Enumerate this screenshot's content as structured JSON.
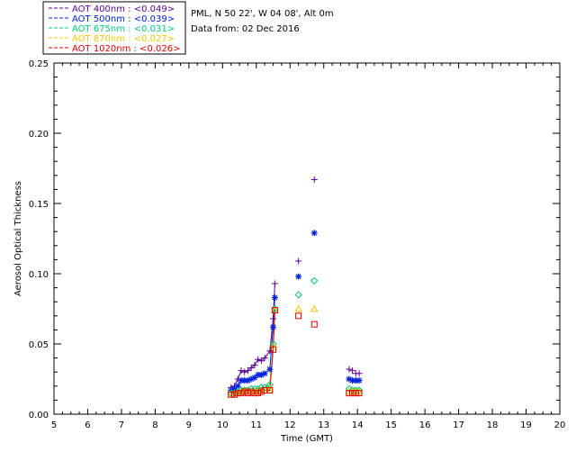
{
  "header": {
    "site_line": "PML, N 50 22', W 04 08', Alt 0m",
    "date_line": "Data from: 02 Dec 2016"
  },
  "chart_data": {
    "type": "scatter",
    "xlabel": "Time (GMT)",
    "ylabel": "Aerosol Optical Thickness",
    "xlim": [
      5,
      20
    ],
    "ylim": [
      0,
      0.25
    ],
    "x_ticks": [
      "5",
      "6",
      "7",
      "8",
      "9",
      "10",
      "11",
      "12",
      "13",
      "14",
      "15",
      "16",
      "17",
      "18",
      "19",
      "20"
    ],
    "y_ticks": [
      "0.00",
      "0.05",
      "0.10",
      "0.15",
      "0.20",
      "0.25"
    ],
    "grid": false,
    "legend_position": "top-left, outside plot",
    "series": [
      {
        "name": "AOT  400nm : <0.049>",
        "color": "#5a0096",
        "marker": "plus",
        "line_segments": [
          [
            [
              10.25,
              0.019
            ],
            [
              10.35,
              0.02
            ],
            [
              10.45,
              0.025
            ],
            [
              10.55,
              0.031
            ],
            [
              10.65,
              0.03
            ],
            [
              10.75,
              0.031
            ],
            [
              10.85,
              0.033
            ],
            [
              10.95,
              0.035
            ],
            [
              11.05,
              0.039
            ],
            [
              11.15,
              0.038
            ],
            [
              11.25,
              0.04
            ],
            [
              11.4,
              0.045
            ],
            [
              11.5,
              0.068
            ],
            [
              11.55,
              0.093
            ]
          ]
        ],
        "points": [
          [
            10.25,
            0.019
          ],
          [
            10.35,
            0.02
          ],
          [
            10.45,
            0.025
          ],
          [
            10.55,
            0.031
          ],
          [
            10.65,
            0.03
          ],
          [
            10.75,
            0.031
          ],
          [
            10.85,
            0.033
          ],
          [
            10.95,
            0.035
          ],
          [
            11.05,
            0.039
          ],
          [
            11.15,
            0.038
          ],
          [
            11.25,
            0.04
          ],
          [
            11.4,
            0.045
          ],
          [
            11.5,
            0.068
          ],
          [
            11.55,
            0.093
          ],
          [
            12.25,
            0.109
          ],
          [
            12.72,
            0.167
          ],
          [
            13.75,
            0.032
          ],
          [
            13.85,
            0.031
          ],
          [
            13.95,
            0.029
          ],
          [
            14.05,
            0.029
          ]
        ]
      },
      {
        "name": "AOT  500nm : <0.039>",
        "color": "#0020e0",
        "marker": "asterisk",
        "line_segments": [
          [
            [
              10.25,
              0.017
            ],
            [
              10.35,
              0.018
            ],
            [
              10.45,
              0.02
            ],
            [
              10.55,
              0.024
            ],
            [
              10.65,
              0.024
            ],
            [
              10.75,
              0.024
            ],
            [
              10.85,
              0.025
            ],
            [
              10.95,
              0.026
            ],
            [
              11.05,
              0.028
            ],
            [
              11.15,
              0.028
            ],
            [
              11.25,
              0.029
            ],
            [
              11.4,
              0.032
            ],
            [
              11.5,
              0.062
            ],
            [
              11.55,
              0.083
            ]
          ]
        ],
        "points": [
          [
            10.25,
            0.017
          ],
          [
            10.35,
            0.018
          ],
          [
            10.45,
            0.02
          ],
          [
            10.55,
            0.024
          ],
          [
            10.65,
            0.024
          ],
          [
            10.75,
            0.024
          ],
          [
            10.85,
            0.025
          ],
          [
            10.95,
            0.026
          ],
          [
            11.05,
            0.028
          ],
          [
            11.15,
            0.028
          ],
          [
            11.25,
            0.029
          ],
          [
            11.4,
            0.032
          ],
          [
            11.5,
            0.062
          ],
          [
            11.55,
            0.083
          ],
          [
            12.25,
            0.098
          ],
          [
            12.72,
            0.129
          ],
          [
            13.75,
            0.025
          ],
          [
            13.85,
            0.024
          ],
          [
            13.95,
            0.024
          ],
          [
            14.05,
            0.024
          ]
        ]
      },
      {
        "name": "AOT  675nm : <0.031>",
        "color": "#00c878",
        "marker": "diamond",
        "line_segments": [
          [
            [
              10.25,
              0.015
            ],
            [
              10.35,
              0.015
            ],
            [
              10.45,
              0.016
            ],
            [
              10.55,
              0.017
            ],
            [
              10.65,
              0.017
            ],
            [
              10.75,
              0.017
            ],
            [
              10.85,
              0.018
            ],
            [
              10.95,
              0.018
            ],
            [
              11.05,
              0.018
            ],
            [
              11.15,
              0.019
            ],
            [
              11.25,
              0.019
            ],
            [
              11.4,
              0.021
            ],
            [
              11.5,
              0.05
            ],
            [
              11.55,
              0.075
            ]
          ]
        ],
        "points": [
          [
            10.25,
            0.015
          ],
          [
            10.35,
            0.015
          ],
          [
            10.45,
            0.016
          ],
          [
            10.55,
            0.017
          ],
          [
            10.65,
            0.017
          ],
          [
            10.75,
            0.017
          ],
          [
            10.85,
            0.018
          ],
          [
            10.95,
            0.018
          ],
          [
            11.05,
            0.018
          ],
          [
            11.15,
            0.019
          ],
          [
            11.25,
            0.019
          ],
          [
            11.4,
            0.021
          ],
          [
            11.5,
            0.05
          ],
          [
            11.55,
            0.075
          ],
          [
            12.25,
            0.085
          ],
          [
            12.72,
            0.095
          ],
          [
            13.75,
            0.018
          ],
          [
            13.85,
            0.017
          ],
          [
            13.95,
            0.017
          ],
          [
            14.05,
            0.017
          ]
        ]
      },
      {
        "name": "AOT  870nm : <0.027>",
        "color": "#f0c800",
        "marker": "triangle",
        "line_segments": [
          [
            [
              10.25,
              0.014
            ],
            [
              10.35,
              0.014
            ],
            [
              10.45,
              0.015
            ],
            [
              10.55,
              0.016
            ],
            [
              10.65,
              0.016
            ],
            [
              10.75,
              0.016
            ],
            [
              10.85,
              0.016
            ],
            [
              10.95,
              0.016
            ],
            [
              11.05,
              0.016
            ],
            [
              11.15,
              0.017
            ],
            [
              11.25,
              0.017
            ],
            [
              11.4,
              0.018
            ],
            [
              11.5,
              0.048
            ],
            [
              11.55,
              0.074
            ]
          ]
        ],
        "points": [
          [
            10.25,
            0.014
          ],
          [
            10.35,
            0.014
          ],
          [
            10.45,
            0.015
          ],
          [
            10.55,
            0.016
          ],
          [
            10.65,
            0.016
          ],
          [
            10.75,
            0.016
          ],
          [
            10.85,
            0.016
          ],
          [
            10.95,
            0.016
          ],
          [
            11.05,
            0.016
          ],
          [
            11.15,
            0.017
          ],
          [
            11.25,
            0.017
          ],
          [
            11.4,
            0.018
          ],
          [
            11.5,
            0.048
          ],
          [
            11.55,
            0.074
          ],
          [
            12.25,
            0.075
          ],
          [
            12.72,
            0.075
          ],
          [
            13.75,
            0.016
          ],
          [
            13.85,
            0.016
          ],
          [
            13.95,
            0.016
          ],
          [
            14.05,
            0.016
          ]
        ]
      },
      {
        "name": "AOT 1020nm : <0.026>",
        "color": "#e00000",
        "marker": "square",
        "line_segments": [
          [
            [
              10.25,
              0.014
            ],
            [
              10.35,
              0.014
            ],
            [
              10.45,
              0.015
            ],
            [
              10.55,
              0.015
            ],
            [
              10.65,
              0.016
            ],
            [
              10.75,
              0.015
            ],
            [
              10.85,
              0.016
            ],
            [
              10.95,
              0.015
            ],
            [
              11.05,
              0.015
            ],
            [
              11.15,
              0.016
            ],
            [
              11.25,
              0.017
            ],
            [
              11.4,
              0.017
            ],
            [
              11.5,
              0.046
            ],
            [
              11.55,
              0.074
            ]
          ]
        ],
        "points": [
          [
            10.25,
            0.014
          ],
          [
            10.35,
            0.014
          ],
          [
            10.45,
            0.015
          ],
          [
            10.55,
            0.015
          ],
          [
            10.65,
            0.016
          ],
          [
            10.75,
            0.015
          ],
          [
            10.85,
            0.016
          ],
          [
            10.95,
            0.015
          ],
          [
            11.05,
            0.015
          ],
          [
            11.15,
            0.016
          ],
          [
            11.25,
            0.017
          ],
          [
            11.4,
            0.017
          ],
          [
            11.5,
            0.046
          ],
          [
            11.55,
            0.074
          ],
          [
            12.25,
            0.07
          ],
          [
            12.72,
            0.064
          ],
          [
            13.75,
            0.015
          ],
          [
            13.85,
            0.015
          ],
          [
            13.95,
            0.015
          ],
          [
            14.05,
            0.015
          ]
        ]
      }
    ]
  }
}
